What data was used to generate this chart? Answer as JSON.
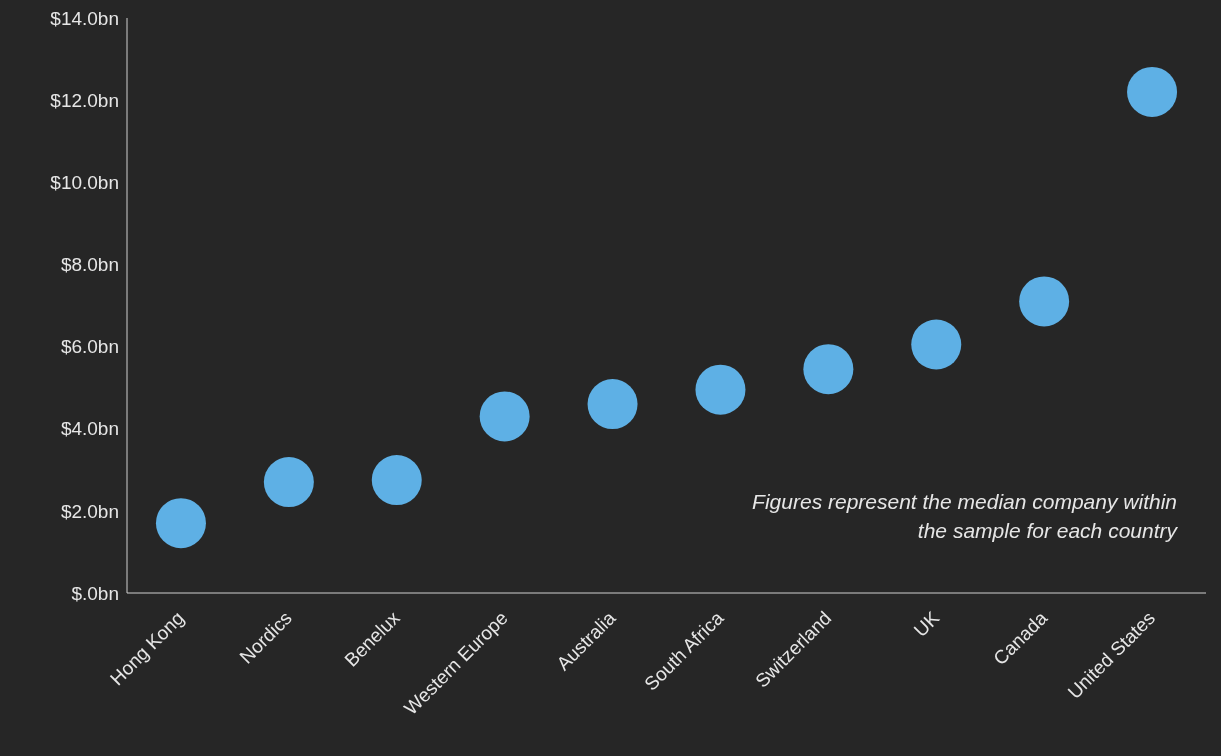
{
  "chart_data": {
    "type": "scatter",
    "categories": [
      "Hong Kong",
      "Nordics",
      "Benelux",
      "Western Europe",
      "Australia",
      "South Africa",
      "Switzerland",
      "UK",
      "Canada",
      "United States"
    ],
    "series": [
      {
        "color": "#5eb0e5",
        "values": [
          1.7,
          2.7,
          2.75,
          4.3,
          4.6,
          4.95,
          5.45,
          6.05,
          7.1,
          12.2
        ]
      }
    ],
    "ylim": [
      0,
      14
    ],
    "yticks": [
      {
        "value": 0,
        "label": "$.0bn"
      },
      {
        "value": 2,
        "label": "$2.0bn"
      },
      {
        "value": 4,
        "label": "$4.0bn"
      },
      {
        "value": 6,
        "label": "$6.0bn"
      },
      {
        "value": 8,
        "label": "$8.0bn"
      },
      {
        "value": 10,
        "label": "$10.0bn"
      },
      {
        "value": 12,
        "label": "$12.0bn"
      },
      {
        "value": 14,
        "label": "$14.0bn"
      }
    ],
    "grid": false,
    "legend": false,
    "marker": "circle",
    "annotations": [
      "Figures represent the median company within the sample for each country"
    ]
  }
}
